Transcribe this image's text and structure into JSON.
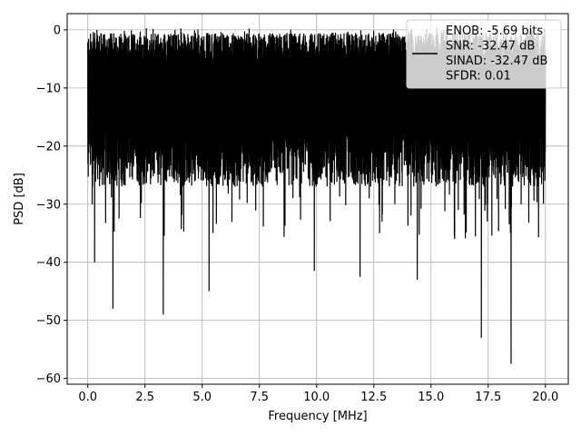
{
  "chart_data": {
    "type": "line",
    "xlabel": "Frequency [MHz]",
    "ylabel": "PSD [dB]",
    "xlim": [
      -0.9,
      21.0
    ],
    "ylim": [
      -61.0,
      2.8
    ],
    "x_ticks": [
      0.0,
      2.5,
      5.0,
      7.5,
      10.0,
      12.5,
      15.0,
      17.5,
      20.0
    ],
    "x_tick_labels": [
      "0.0",
      "2.5",
      "5.0",
      "7.5",
      "10.0",
      "12.5",
      "15.0",
      "17.5",
      "20.0"
    ],
    "y_ticks": [
      0,
      -10,
      -20,
      -30,
      -40,
      -50,
      -60
    ],
    "y_tick_labels": [
      "0",
      "−10",
      "−20",
      "−30",
      "−40",
      "−50",
      "−60"
    ],
    "grid": true,
    "legend_position": "top-right",
    "series": [
      {
        "color": "#000000",
        "description": "Dense noisy PSD between roughly -3 dB and -28 dB, with deep notches",
        "x_range": [
          0.0,
          20.0
        ],
        "typical_high": -3,
        "typical_low": -28,
        "notable_minima": [
          {
            "x": 0.3,
            "y": -40
          },
          {
            "x": 1.1,
            "y": -48
          },
          {
            "x": 3.3,
            "y": -49
          },
          {
            "x": 5.3,
            "y": -45
          },
          {
            "x": 9.9,
            "y": -41.5
          },
          {
            "x": 11.9,
            "y": -42.5
          },
          {
            "x": 14.4,
            "y": -43
          },
          {
            "x": 17.2,
            "y": -53
          },
          {
            "x": 18.5,
            "y": -57.5
          }
        ],
        "peak_max": 0.3
      }
    ],
    "legend_lines": [
      "ENOB: -5.69 bits",
      "SNR: -32.47 dB",
      "SINAD: -32.47 dB",
      "SFDR: 0.01"
    ]
  }
}
